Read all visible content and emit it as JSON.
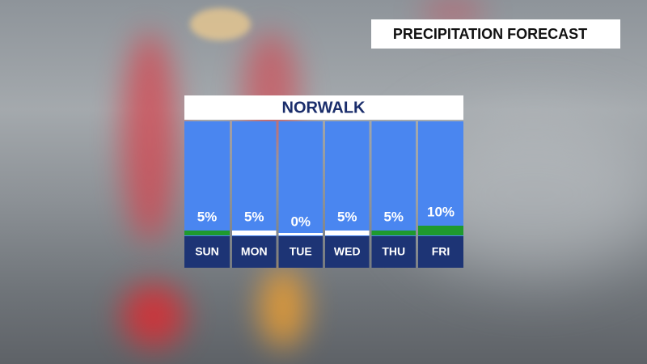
{
  "chart_data": {
    "type": "bar",
    "title": "PRECIPITATION FORECAST",
    "subtitle": "NORWALK",
    "categories": [
      "SUN",
      "MON",
      "TUE",
      "WED",
      "THU",
      "FRI"
    ],
    "values": [
      5,
      5,
      0,
      5,
      5,
      10
    ],
    "value_labels": [
      "5%",
      "5%",
      "0%",
      "5%",
      "5%",
      "10%"
    ],
    "colors": [
      "#1f9a2e",
      "#ffffff",
      "#ffffff",
      "#ffffff",
      "#1f9a2e",
      "#1f9a2e"
    ]
  }
}
